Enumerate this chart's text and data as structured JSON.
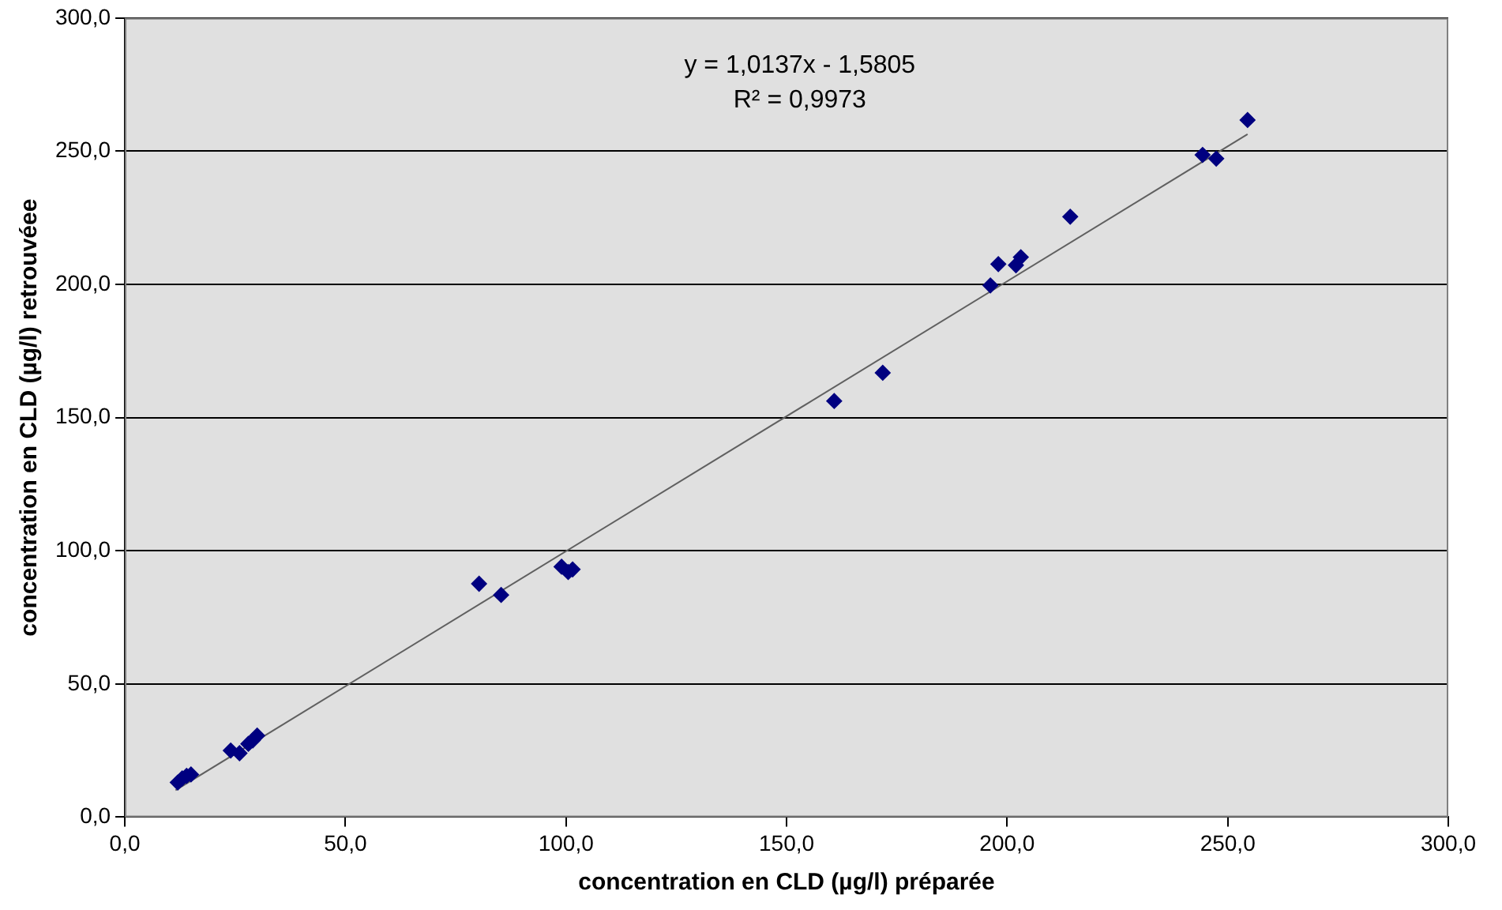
{
  "chart_data": {
    "type": "scatter",
    "xlabel": "concentration en CLD (µg/l) préparée",
    "ylabel": "concentration en CLD (µg/l) retrouvéee",
    "annotations": [
      "y = 1,0137x - 1,5805",
      "R² = 0,9973"
    ],
    "series": [
      {
        "color": "#000080",
        "marker": "diamond",
        "x": [
          12,
          13,
          14,
          15,
          24,
          26,
          28,
          29,
          30,
          80.3,
          85.3,
          99,
          100.5,
          101.5,
          160.8,
          171.8,
          196.2,
          198,
          202,
          203.1,
          214.3,
          244.3,
          247.4,
          254.5
        ],
        "values": [
          13,
          14.5,
          15.5,
          16,
          25,
          24,
          27.5,
          28.8,
          30.6,
          87.6,
          83.4,
          94,
          92,
          93,
          156.2,
          166.8,
          199.6,
          207.6,
          207.2,
          210.2,
          225.4,
          248.6,
          247.2,
          261.7
        ]
      },
      {
        "type": "line",
        "color": "#606060",
        "marker": "none",
        "x": [
          11.5,
          254.5
        ],
        "values": [
          10.1,
          256.4
        ]
      }
    ],
    "xlim": [
      0,
      300
    ],
    "ylim": [
      0,
      300
    ],
    "xticks": [
      {
        "value": 0,
        "label": "0,0"
      },
      {
        "value": 50,
        "label": "50,0"
      },
      {
        "value": 100,
        "label": "100,0"
      },
      {
        "value": 150,
        "label": "150,0"
      },
      {
        "value": 200,
        "label": "200,0"
      },
      {
        "value": 250,
        "label": "250,0"
      },
      {
        "value": 300,
        "label": "300,0"
      }
    ],
    "yticks": [
      {
        "value": 0,
        "label": "0,0"
      },
      {
        "value": 50,
        "label": "50,0"
      },
      {
        "value": 100,
        "label": "100,0"
      },
      {
        "value": 150,
        "label": "150,0"
      },
      {
        "value": 200,
        "label": "200,0"
      },
      {
        "value": 250,
        "label": "250,0"
      },
      {
        "value": 300,
        "label": "300,0"
      }
    ],
    "grid": "y",
    "legend": false
  }
}
